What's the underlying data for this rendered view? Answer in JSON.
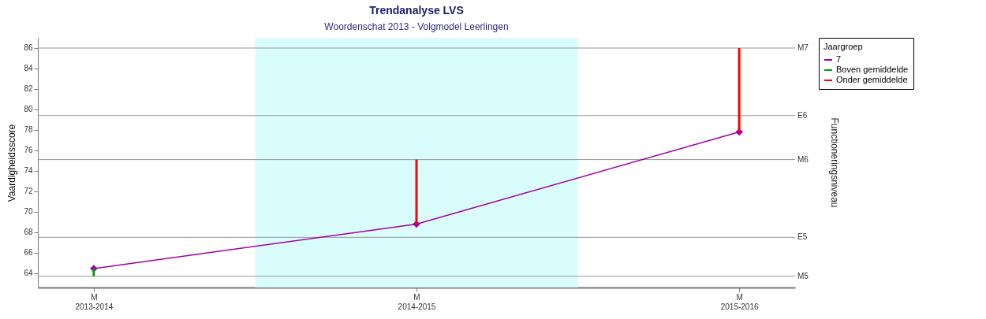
{
  "chart_data": {
    "type": "line",
    "title": "Trendanalyse LVS",
    "subtitle": "Woordenschat 2013 - Volgmodel Leerlingen",
    "ylabel": "Vaardigheidsscore",
    "y2label": "Functioneringsniveau",
    "legend_title": "Jaargroep",
    "categories": [
      "M\n2013-2014",
      "M\n2014-2015",
      "M\n2015-2016"
    ],
    "series": [
      {
        "name": "7",
        "color": "#a000a8",
        "values": [
          64.45,
          68.8,
          77.8
        ]
      },
      {
        "name": "Boven gemiddelde",
        "type": "bar",
        "color": "#00a000",
        "base": [
          63.7,
          null,
          null
        ],
        "values": [
          0.75,
          null,
          null
        ]
      },
      {
        "name": "Onder gemiddelde",
        "type": "bar",
        "color": "#ff0000",
        "base": [
          null,
          68.8,
          77.8
        ],
        "values": [
          null,
          6.3,
          8.2
        ]
      }
    ],
    "ylim": [
      62.6,
      87
    ],
    "yticks": [
      64,
      66,
      68,
      70,
      72,
      74,
      76,
      78,
      80,
      82,
      84,
      86
    ],
    "ref_lines": [
      {
        "axis": "y",
        "value": 63.7,
        "label": "M5",
        "color": "#999999"
      },
      {
        "axis": "y",
        "value": 67.5,
        "label": "E5",
        "color": "#999999"
      },
      {
        "axis": "y",
        "value": 75.1,
        "label": "M6",
        "color": "#999999"
      },
      {
        "axis": "y",
        "value": 79.4,
        "label": "E6",
        "color": "#999999"
      },
      {
        "axis": "y",
        "value": 86.0,
        "label": "M7",
        "color": "#999999"
      }
    ],
    "bands": [
      {
        "axis": "x",
        "from": "M\n2014-2015",
        "to": "M\n2014-2015",
        "color": "#d9fcfc"
      }
    ],
    "legend": "top right",
    "marker": "diamond",
    "line_style": "solid"
  }
}
